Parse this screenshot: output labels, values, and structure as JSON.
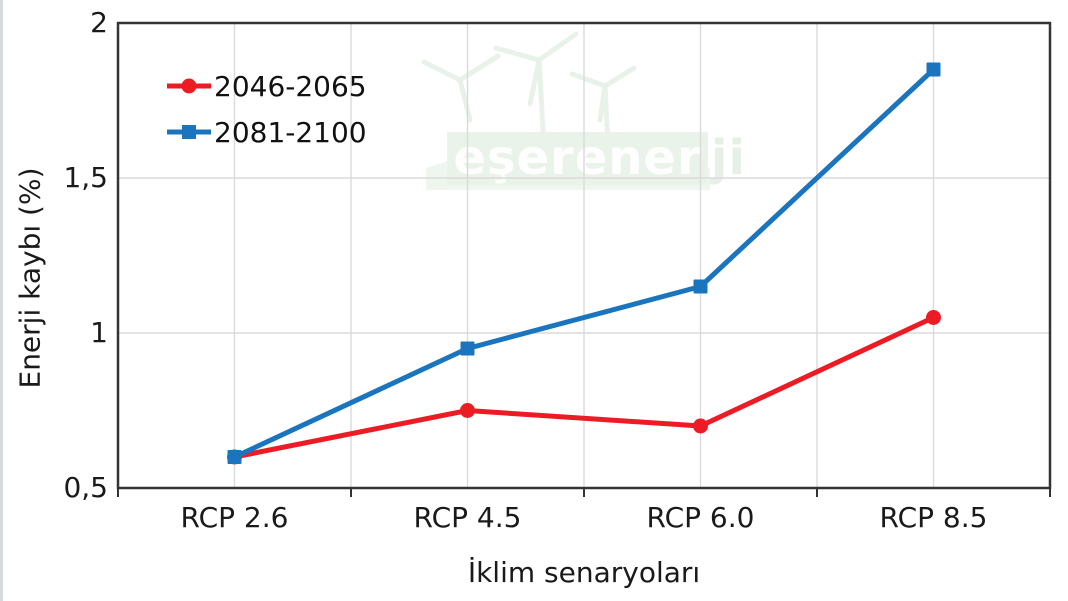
{
  "page": {
    "background": "#ffffff"
  },
  "watermark": {
    "brand_main": "eşerener",
    "brand_tail": "ji",
    "band_color": "#eaf3ea",
    "main_text_color": "#fdfefd",
    "tail_text_color": "#e6f0e6",
    "turbine_color": "#e9f2e9",
    "hill_color": "#eff6ef"
  },
  "chart_data": {
    "type": "line",
    "title": "",
    "categories": [
      "RCP 2.6",
      "RCP 4.5",
      "RCP 6.0",
      "RCP 8.5"
    ],
    "series": [
      {
        "name": "2046-2065",
        "color": "#ed1c24",
        "marker": "circle",
        "values": [
          0.6,
          0.75,
          0.7,
          1.05
        ]
      },
      {
        "name": "2081-2100",
        "color": "#1b74be",
        "marker": "square",
        "values": [
          0.6,
          0.95,
          1.15,
          1.85
        ]
      }
    ],
    "xlabel": "İklim senaryoları",
    "ylabel": "Enerji kaybı (%)",
    "ylim": [
      0.5,
      2
    ],
    "yticks": [
      {
        "value": 0.5,
        "label": "0,5"
      },
      {
        "value": 1,
        "label": "1"
      },
      {
        "value": 1.5,
        "label": "1,5"
      },
      {
        "value": 2,
        "label": "2"
      }
    ],
    "grid": "on",
    "legend_position": "top-left-inside",
    "axis_color": "#333333",
    "grid_color": "#dadada",
    "text_color": "#1a1a1a"
  }
}
